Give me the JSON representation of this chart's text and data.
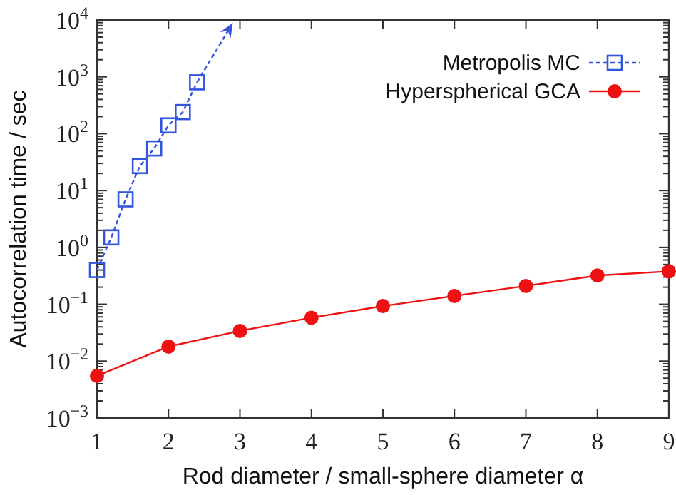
{
  "chart_data": {
    "type": "line",
    "xlabel": "Rod diameter / small-sphere diameter α",
    "ylabel": "Autocorrelation time / sec",
    "log": "y",
    "xlim": [
      1,
      9
    ],
    "xticks": [
      1,
      2,
      3,
      4,
      5,
      6,
      7,
      8,
      9
    ],
    "ylim": [
      0.001,
      10000
    ],
    "yticks": [
      {
        "value": 0.001,
        "label": "10$^{−3}$"
      },
      {
        "value": 0.01,
        "label": "10$^{−2}$"
      },
      {
        "value": 0.1,
        "label": "10$^{−1}$"
      },
      {
        "value": 1,
        "label": "10$^{0}$"
      },
      {
        "value": 10,
        "label": "10$^{1}$"
      },
      {
        "value": 100,
        "label": "10$^{2}$"
      },
      {
        "value": 1000,
        "label": "10$^{3}$"
      },
      {
        "value": 10000,
        "label": "10$^{4}$"
      }
    ],
    "legend": "top right",
    "grid": false,
    "series": [
      {
        "name": "Metropolis MC",
        "color": "#3355dd",
        "marker": "square",
        "line_style": "dashed",
        "x": [
          1,
          1.2,
          1.4,
          1.6,
          1.8,
          2.0,
          2.2,
          2.4
        ],
        "values": [
          0.4,
          1.5,
          7,
          27,
          55,
          140,
          240,
          800
        ]
      },
      {
        "name": "Hyperspherical GCA",
        "color": "#ee1111",
        "marker": "circle",
        "line_style": "solid",
        "x": [
          1,
          2,
          3,
          4,
          5,
          6,
          7,
          8,
          9
        ],
        "values": [
          0.0055,
          0.018,
          0.034,
          0.058,
          0.093,
          0.14,
          0.21,
          0.32,
          0.38
        ]
      }
    ]
  }
}
